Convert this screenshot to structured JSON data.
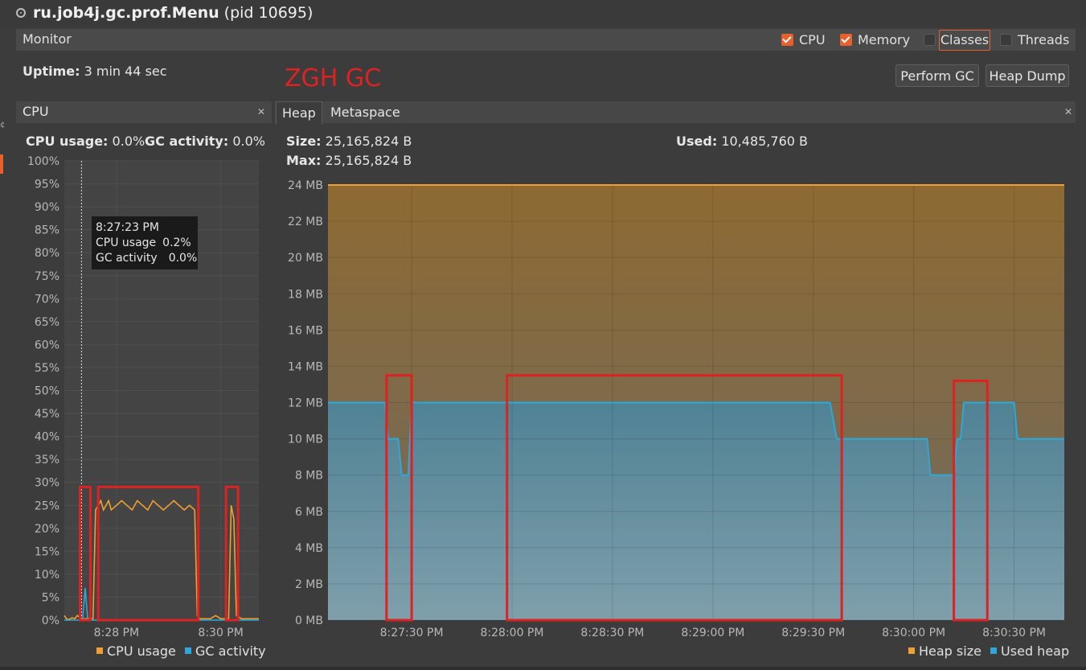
{
  "window": {
    "title_bold": "ru.job4j.gc.prof.Menu",
    "title_rest": " (pid 10695)"
  },
  "monitor": {
    "label": "Monitor",
    "checkboxes": [
      {
        "label": "CPU",
        "checked": true
      },
      {
        "label": "Memory",
        "checked": true
      },
      {
        "label": "Classes",
        "checked": false
      },
      {
        "label": "Threads",
        "checked": false
      }
    ],
    "uptime_label": "Uptime:",
    "uptime_value": "3 min 44 sec",
    "annotation": "ZGH GC",
    "perform_gc": "Perform GC",
    "heap_dump": "Heap Dump"
  },
  "cpu_panel": {
    "title": "CPU",
    "close": "✕",
    "usage_label": "CPU usage:",
    "usage_value": "0.0%",
    "gc_label": "GC activity:",
    "gc_value": "0.0%",
    "tooltip": {
      "time": "8:27:23 PM",
      "cpu_label": "CPU usage",
      "cpu_value": "0.2%",
      "gc_label": "GC activity",
      "gc_value": "0.0%"
    },
    "legend_cpu": "CPU usage",
    "legend_gc": "GC activity"
  },
  "heap_panel": {
    "tabs": [
      "Heap",
      "Metaspace"
    ],
    "close": "✕",
    "size_label": "Size:",
    "size_value": "25,165,824 B",
    "max_label": "Max:",
    "max_value": "25,165,824 B",
    "used_label": "Used:",
    "used_value": "10,485,760 B",
    "legend_size": "Heap size",
    "legend_used": "Used heap"
  },
  "colors": {
    "accent": "#e8612c",
    "cpu": "#f0a030",
    "gc": "#2ea8d8",
    "heap_size": "#f0a030",
    "used_heap": "#2ea8d8",
    "highlight": "#dd2222"
  },
  "chart_data": [
    {
      "type": "line",
      "chart": "cpu",
      "y_ticks": [
        "100%",
        "95%",
        "90%",
        "85%",
        "80%",
        "75%",
        "70%",
        "65%",
        "60%",
        "55%",
        "50%",
        "45%",
        "40%",
        "35%",
        "30%",
        "25%",
        "20%",
        "15%",
        "10%",
        "5%",
        "0%"
      ],
      "x_ticks": [
        "8:28 PM",
        "8:30 PM"
      ],
      "ylim": [
        0,
        100
      ],
      "x_domain_min": [
        0,
        3.73
      ],
      "grid": true,
      "legend_position": "bottom-right",
      "series": [
        {
          "name": "CPU usage",
          "x_min": [
            0,
            0.05,
            0.1,
            0.15,
            0.2,
            0.25,
            0.3,
            0.35,
            0.4,
            0.45,
            0.5,
            0.55,
            0.6,
            0.65,
            0.7,
            0.75,
            0.8,
            0.85,
            0.9,
            1.0,
            1.1,
            1.2,
            1.3,
            1.4,
            1.5,
            1.6,
            1.7,
            1.8,
            1.9,
            2.0,
            2.1,
            2.2,
            2.3,
            2.4,
            2.5,
            2.55,
            2.6,
            2.7,
            2.8,
            2.9,
            3.0,
            3.1,
            3.15,
            3.2,
            3.25,
            3.3,
            3.4,
            3.5,
            3.6,
            3.73
          ],
          "values": [
            1,
            0.2,
            0.2,
            0.5,
            0.3,
            1,
            0.5,
            0.3,
            0.3,
            0.3,
            0.3,
            0.3,
            24,
            25,
            26,
            24,
            25,
            26,
            24,
            25,
            26,
            25,
            24,
            26,
            25,
            24,
            26,
            25,
            24,
            25,
            26,
            25,
            24,
            25,
            24,
            1,
            0.3,
            0.3,
            0.3,
            1,
            0.3,
            0.3,
            0.3,
            25,
            22,
            1,
            0.3,
            0.3,
            0.3,
            0.3
          ]
        },
        {
          "name": "GC activity",
          "x_min": [
            0,
            0.35,
            0.4,
            0.45,
            0.5,
            1.0,
            2.0,
            3.0,
            3.73
          ],
          "values": [
            0,
            0,
            7,
            0,
            0,
            0,
            0,
            0,
            0
          ]
        }
      ]
    },
    {
      "type": "area",
      "chart": "heap",
      "y_ticks": [
        "24 MB",
        "22 MB",
        "20 MB",
        "18 MB",
        "16 MB",
        "14 MB",
        "12 MB",
        "10 MB",
        "8 MB",
        "6 MB",
        "4 MB",
        "2 MB",
        "0 MB"
      ],
      "x_ticks": [
        "8:27:30 PM",
        "8:28:00 PM",
        "8:28:30 PM",
        "8:29:00 PM",
        "8:29:30 PM",
        "8:30:00 PM",
        "8:30:30 PM"
      ],
      "ylim": [
        0,
        24
      ],
      "grid": true,
      "legend_position": "bottom-right",
      "series": [
        {
          "name": "Heap size",
          "unit": "MB",
          "x_sec": [
            0,
            220
          ],
          "values": [
            24,
            24
          ]
        },
        {
          "name": "Used heap",
          "unit": "MB",
          "x_sec": [
            0,
            17,
            18,
            21,
            22,
            24,
            25,
            150,
            152,
            179,
            180,
            187,
            188,
            189,
            190,
            193,
            194,
            205,
            206,
            220
          ],
          "values": [
            12,
            12,
            10,
            10,
            8,
            8,
            12,
            12,
            10,
            10,
            8,
            8,
            10,
            10,
            12,
            12,
            12,
            12,
            10,
            10
          ]
        }
      ]
    }
  ]
}
